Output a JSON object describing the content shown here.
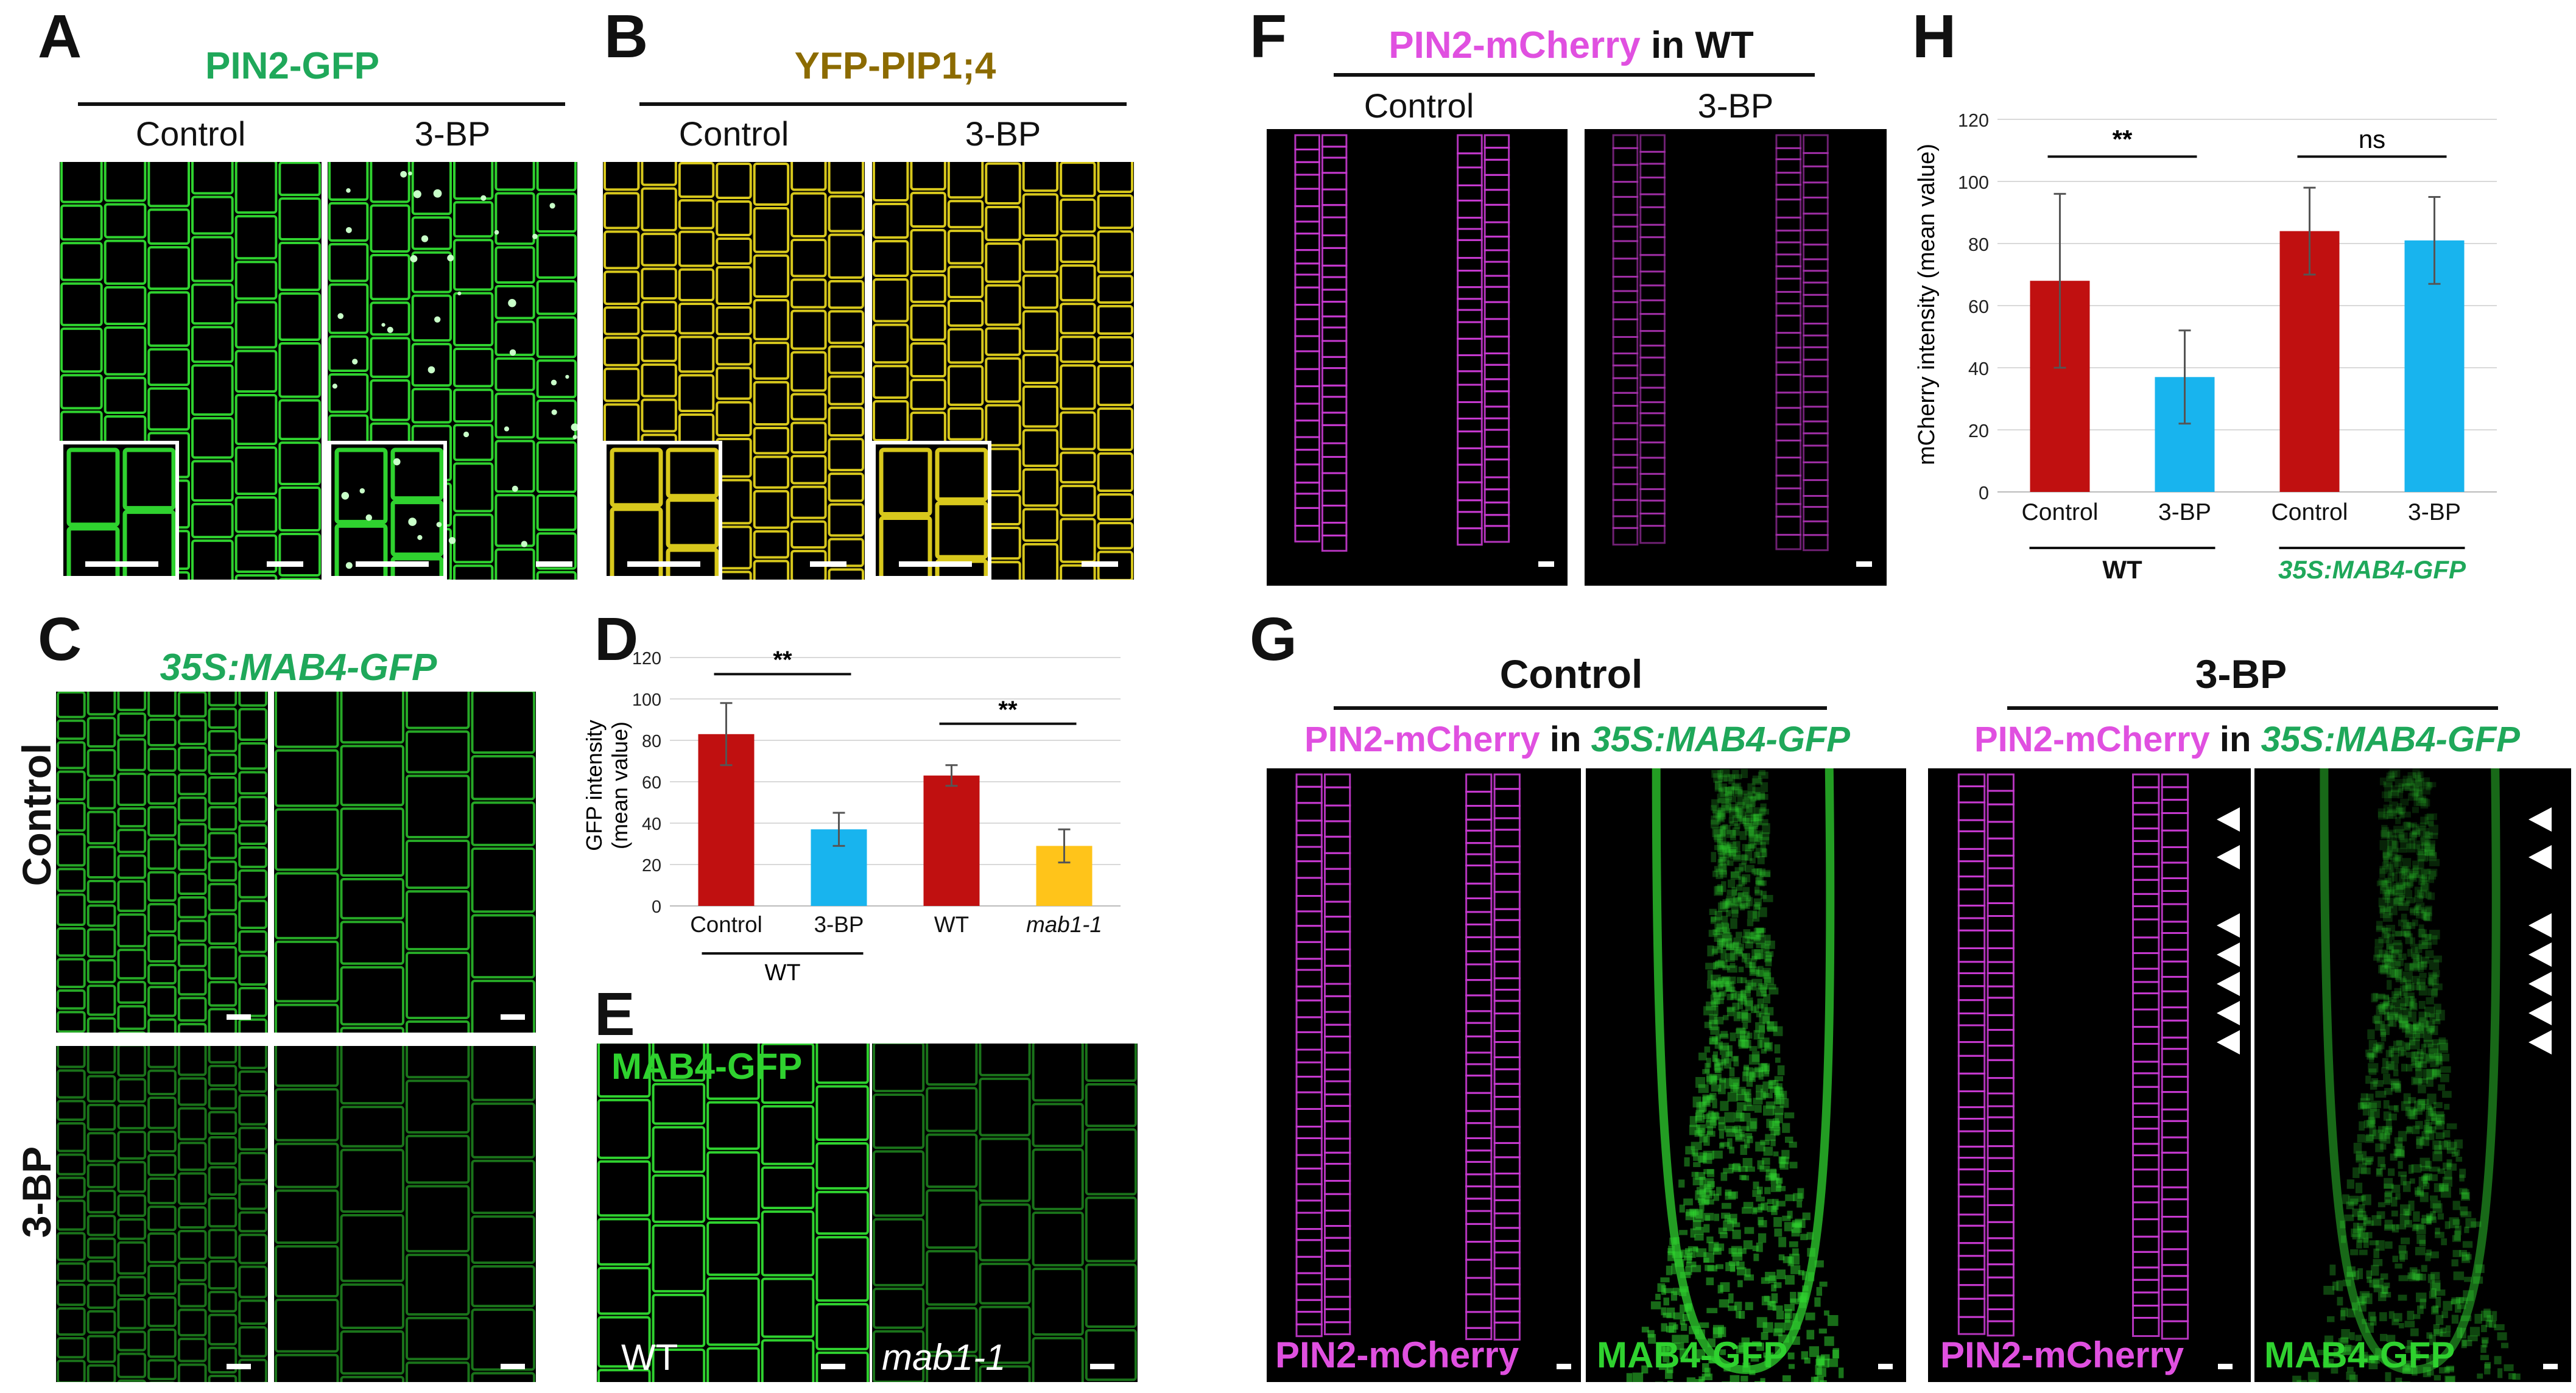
{
  "colors": {
    "gfp_green": "#1fa85a",
    "yfp_gold": "#8c6b00",
    "mcherry_magenta": "#e050e0",
    "bar_red": "#c01010",
    "bar_blue": "#18b4ee",
    "bar_yellow": "#ffc41a",
    "cell_green": "#2fd22f",
    "cell_yellow": "#d8c81c",
    "cell_magenta": "#c83ad0"
  },
  "panels": {
    "A": {
      "letter": "A",
      "title": "PIN2-GFP",
      "left": "Control",
      "right": "3-BP"
    },
    "B": {
      "letter": "B",
      "title": "YFP-PIP1;4",
      "left": "Control",
      "right": "3-BP"
    },
    "C": {
      "letter": "C",
      "title": "35S:MAB4-GFP",
      "row1": "Control",
      "row2": "3-BP"
    },
    "D": {
      "letter": "D"
    },
    "E": {
      "letter": "E",
      "label_top": "MAB4-GFP",
      "label_left": "WT",
      "label_right": "mab1-1"
    },
    "F": {
      "letter": "F",
      "title_a": "PIN2-mCherry",
      "title_b": " in WT",
      "left": "Control",
      "right": "3-BP"
    },
    "G": {
      "letter": "G",
      "left_title": "Control",
      "right_title": "3-BP",
      "sub_a": "PIN2-mCherry",
      "sub_b": " in ",
      "sub_c": "35S:MAB4-GFP",
      "img_label_mcherry": "PIN2-mCherry",
      "img_label_gfp": "MAB4-GFP"
    },
    "H": {
      "letter": "H"
    }
  },
  "chart_data": [
    {
      "id": "D",
      "type": "bar",
      "categories": [
        "Control",
        "3-BP",
        "WT",
        "mab1-1"
      ],
      "values": [
        83,
        37,
        63,
        29
      ],
      "errors": [
        15,
        8,
        5,
        8
      ],
      "ylabel": "GFP intensity (mean value)",
      "ylabel_line1": "GFP intensity",
      "ylabel_line2": "(mean value)",
      "ylim": [
        0,
        120
      ],
      "yticks": [
        "0",
        "20",
        "40",
        "60",
        "80",
        "100",
        "120"
      ],
      "group_label": "WT",
      "significance": [
        "**",
        "**"
      ],
      "grid": true
    },
    {
      "id": "H",
      "type": "bar",
      "categories": [
        "Control",
        "3-BP",
        "Control",
        "3-BP"
      ],
      "values": [
        68,
        37,
        84,
        81
      ],
      "errors": [
        28,
        15,
        14,
        14
      ],
      "ylabel": "mCherry intensity (mean value)",
      "ylim": [
        0,
        120
      ],
      "yticks": [
        "0",
        "20",
        "40",
        "60",
        "80",
        "100",
        "120"
      ],
      "group_labels": [
        "WT",
        "35S:MAB4-GFP"
      ],
      "significance": [
        "**",
        "ns"
      ],
      "grid": true
    }
  ]
}
